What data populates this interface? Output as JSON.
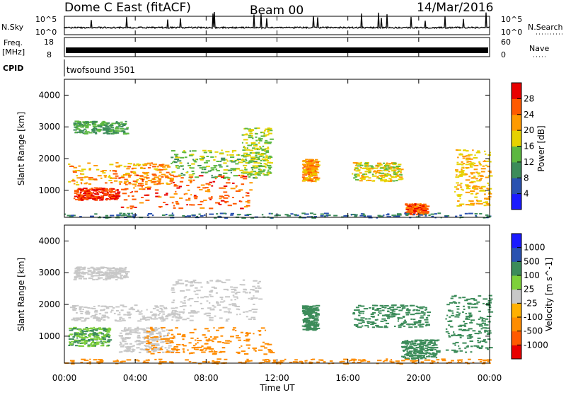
{
  "header": {
    "station": "Dome C East (fitACF)",
    "beam": "Beam 00",
    "date": "14/Mar/2016"
  },
  "strip_labels": {
    "nsky": "N.Sky",
    "nsky_top": "10^5",
    "nsky_bottom": "10^0",
    "nsearch": "N.Search",
    "nsearch_top": "10^5",
    "nsearch_bottom": "10^0",
    "freq_line1": "Freq.",
    "freq_line2": "[MHz]",
    "freq_top": "18",
    "freq_bottom": "8",
    "nave": "Nave",
    "nave_top": "60",
    "nave_bottom": "0",
    "cpid": "CPID",
    "cpid_value": "twofsound 3501"
  },
  "colors": {
    "power_scale": [
      "#1a1aff",
      "#2a52b0",
      "#3c8c5a",
      "#5cb840",
      "#e6d200",
      "#ff9a00",
      "#ff5a00",
      "#e80000"
    ],
    "velocity_scale": [
      "#e80000",
      "#ff5a00",
      "#ff8c00",
      "#ffb000",
      "#c8c8c8",
      "#7ed03a",
      "#3c8c5a",
      "#2a52b0",
      "#1a1aff"
    ],
    "noise_trace": "#000000",
    "frequency_band": "#000000",
    "dot_mark": "#555555"
  },
  "chart_data": [
    {
      "type": "line",
      "panel": "N.Sky / N.Search",
      "x": [
        "00:00",
        "04:00",
        "08:00",
        "12:00",
        "16:00",
        "20:00",
        "00:00"
      ],
      "ylabel": "N.Sky",
      "y2label": "N.Search",
      "yscale": "log",
      "ylim": [
        1,
        100000
      ]
    },
    {
      "type": "line",
      "panel": "Freq. / Nave",
      "ylabel": "Freq. [MHz]",
      "ylim": [
        8,
        18
      ],
      "y2label": "Nave",
      "y2lim": [
        0,
        60
      ]
    },
    {
      "type": "heatmap",
      "panel": "Power",
      "ylabel": "Slant Range [km]",
      "xlabel": "Time UT",
      "yticks": [
        "1000",
        "2000",
        "3000",
        "4000"
      ],
      "xticks": [
        "00:00",
        "04:00",
        "08:00",
        "12:00",
        "16:00",
        "20:00",
        "00:00"
      ],
      "colorbar_label": "Power [dB]",
      "colorbar_ticks": [
        "4",
        "8",
        "12",
        "16",
        "20",
        "24",
        "28"
      ],
      "colorbar_range": [
        0,
        32
      ],
      "scatter_regions": [
        {
          "t": [
            0.2,
            6.0
          ],
          "r": [
            1200,
            1900
          ],
          "v": 22
        },
        {
          "t": [
            6.0,
            11.0
          ],
          "r": [
            1400,
            2300
          ],
          "v": 14
        },
        {
          "t": [
            0.5,
            3.0
          ],
          "r": [
            700,
            1100
          ],
          "v": 28
        },
        {
          "t": [
            3.0,
            10.5
          ],
          "r": [
            450,
            1500
          ],
          "v": 26
        },
        {
          "t": [
            10.0,
            11.6
          ],
          "r": [
            1500,
            3000
          ],
          "v": 16
        },
        {
          "t": [
            0.5,
            3.5
          ],
          "r": [
            2800,
            3200
          ],
          "v": 12
        },
        {
          "t": [
            13.4,
            14.2
          ],
          "r": [
            1300,
            2000
          ],
          "v": 22
        },
        {
          "t": [
            16.2,
            19.0
          ],
          "r": [
            1300,
            1900
          ],
          "v": 18
        },
        {
          "t": [
            19.2,
            20.4
          ],
          "r": [
            250,
            600
          ],
          "v": 26
        },
        {
          "t": [
            22.0,
            24.0
          ],
          "r": [
            500,
            2300
          ],
          "v": 20
        },
        {
          "t": [
            0.0,
            24.0
          ],
          "r": [
            150,
            300
          ],
          "v": 8
        }
      ]
    },
    {
      "type": "heatmap",
      "panel": "Velocity",
      "ylabel": "Slant Range [km]",
      "xlabel": "Time UT",
      "yticks": [
        "1000",
        "2000",
        "3000",
        "4000"
      ],
      "xticks": [
        "00:00",
        "04:00",
        "08:00",
        "12:00",
        "16:00",
        "20:00",
        "00:00"
      ],
      "colorbar_label": "Velocity [m s^-1]",
      "colorbar_ticks": [
        "-1000",
        "-500",
        "-100",
        "-25",
        "25",
        "100",
        "500",
        "1000"
      ],
      "scatter_regions": [
        {
          "t": [
            0.2,
            6.5
          ],
          "r": [
            1500,
            2000
          ],
          "v": 0
        },
        {
          "t": [
            6.0,
            11.0
          ],
          "r": [
            1500,
            2800
          ],
          "v": 0
        },
        {
          "t": [
            0.2,
            2.5
          ],
          "r": [
            700,
            1300
          ],
          "v": 100
        },
        {
          "t": [
            3.0,
            6.0
          ],
          "r": [
            500,
            1300
          ],
          "v": 0
        },
        {
          "t": [
            4.5,
            11.6
          ],
          "r": [
            450,
            1300
          ],
          "v": -400
        },
        {
          "t": [
            0.5,
            3.5
          ],
          "r": [
            2800,
            3200
          ],
          "v": 0
        },
        {
          "t": [
            13.4,
            14.2
          ],
          "r": [
            1200,
            2000
          ],
          "v": 300
        },
        {
          "t": [
            16.2,
            20.5
          ],
          "r": [
            1300,
            2000
          ],
          "v": 200
        },
        {
          "t": [
            19.0,
            21.0
          ],
          "r": [
            300,
            900
          ],
          "v": 150
        },
        {
          "t": [
            21.5,
            24.0
          ],
          "r": [
            500,
            2300
          ],
          "v": 400
        },
        {
          "t": [
            0.0,
            24.0
          ],
          "r": [
            150,
            300
          ],
          "v": -200
        }
      ]
    }
  ],
  "axes": {
    "xlabel": "Time UT"
  }
}
